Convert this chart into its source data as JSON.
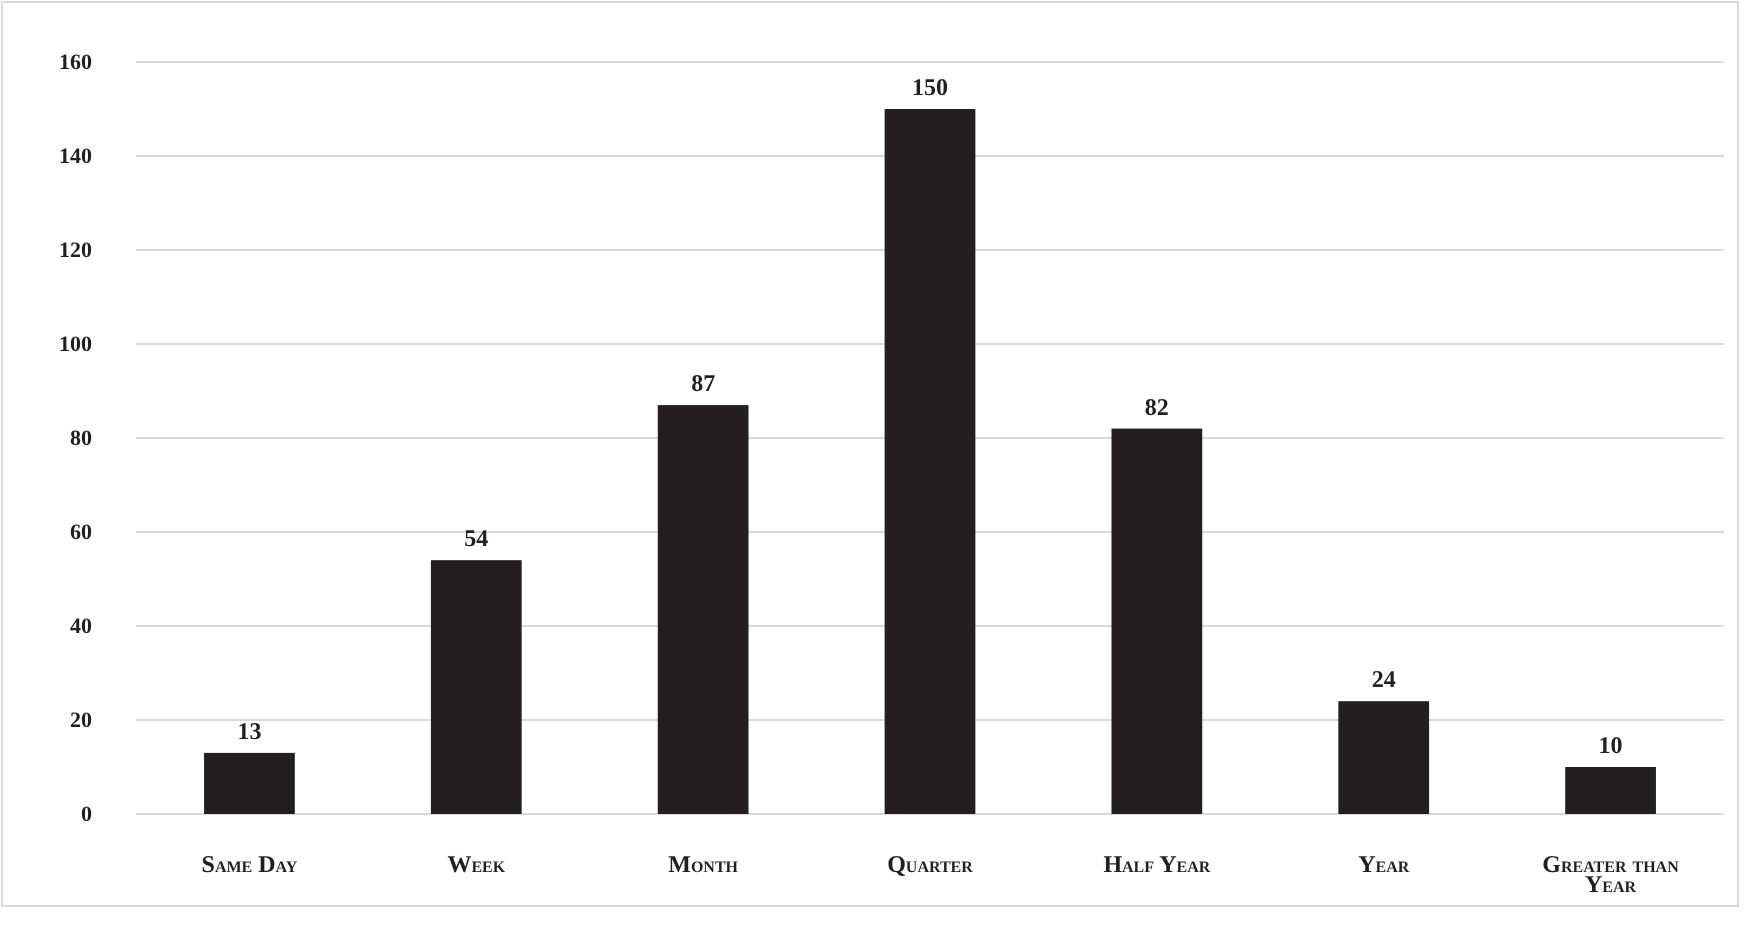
{
  "chart_data": {
    "type": "bar",
    "categories": [
      "Same Day",
      "Week",
      "Month",
      "Quarter",
      "Half Year",
      "Year",
      "Greater than Year"
    ],
    "values": [
      13,
      54,
      87,
      150,
      82,
      24,
      10
    ],
    "color": "#231f20",
    "ylim": [
      0,
      160
    ],
    "yticks": [
      0,
      20,
      40,
      60,
      80,
      100,
      120,
      140,
      160
    ],
    "grid": "y",
    "data_labels": true
  }
}
